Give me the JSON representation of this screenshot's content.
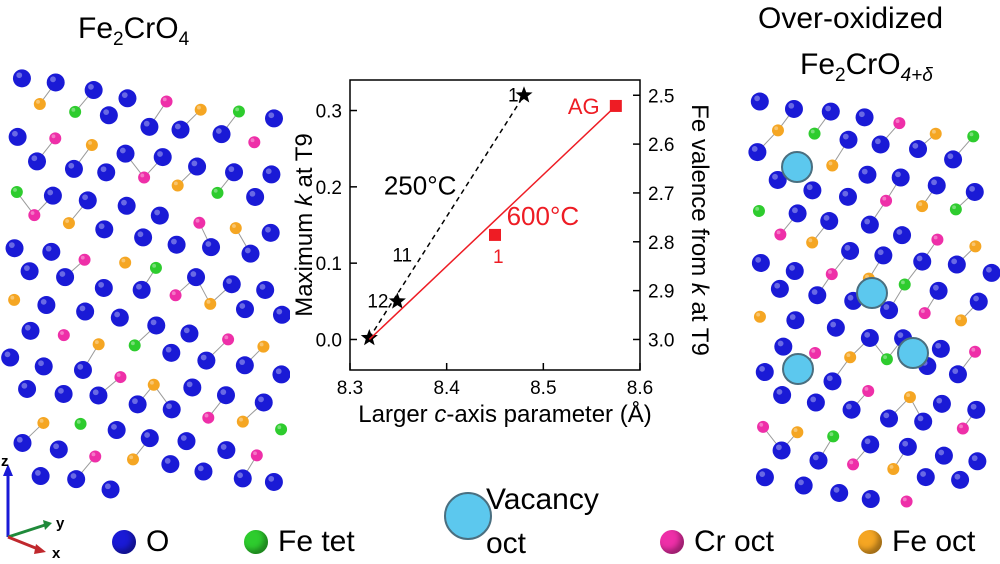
{
  "left_title": {
    "main": "Fe",
    "sub1": "2",
    "mid": "CrO",
    "sub2": "4"
  },
  "right_title": {
    "line1": "Over-oxidized",
    "main": "Fe",
    "sub1": "2",
    "mid": "CrO",
    "sub2": "4+δ"
  },
  "axes_indicator": {
    "z": "z",
    "y": "y",
    "x": "x"
  },
  "colors": {
    "O": "#1a1ad6",
    "fe_tet": "#2ecc2e",
    "cr_oct": "#ee2fa8",
    "fe_oct": "#f5a623",
    "vacancy": "#5cc8ee",
    "red": "#ee1c24"
  },
  "legend": {
    "o": "O",
    "fe_tet": "Fe tet",
    "vacancy_line1": "Vacancy",
    "vacancy_line2": "oct",
    "cr_oct": "Cr oct",
    "fe_oct": "Fe oct"
  },
  "chart_data": {
    "type": "line",
    "xlabel": "Larger c-axis parameter (Å)",
    "xlabel_pre": "Larger ",
    "xlabel_italic": "c",
    "xlabel_post": "-axis parameter (Å)",
    "ylabel": "Maximum k at T9",
    "ylabel_pre": "Maximum ",
    "ylabel_italic": "k",
    "ylabel_post": " at T9",
    "y2label": "Fe valence from k at T9",
    "y2label_pre": "Fe valence from ",
    "y2label_italic": "k",
    "y2label_post": " at T9",
    "xlim": [
      8.3,
      8.6
    ],
    "ylim": [
      -0.04,
      0.34
    ],
    "xticks": [
      "8.3",
      "8.4",
      "8.5",
      "8.6"
    ],
    "xtick_values": [
      8.3,
      8.4,
      8.5,
      8.6
    ],
    "yticks": [
      "0.0",
      "0.1",
      "0.2",
      "0.3"
    ],
    "ytick_values": [
      0.0,
      0.1,
      0.2,
      0.3
    ],
    "y2ticks": [
      "2.5",
      "2.6",
      "2.7",
      "2.8",
      "2.9",
      "3.0"
    ],
    "y2tick_values": [
      0.32,
      0.256,
      0.192,
      0.128,
      0.064,
      0.0
    ],
    "series": [
      {
        "name": "250°C",
        "marker": "star",
        "line": "dashed",
        "color": "#000000",
        "points": [
          {
            "x": 8.32,
            "y": 0.002,
            "label": ""
          },
          {
            "x": 8.349,
            "y": 0.05,
            "label": "12"
          },
          {
            "x": 8.48,
            "y": 0.32,
            "label": "1"
          }
        ],
        "extra_label": {
          "text": "11",
          "x": 8.35,
          "y": 0.11
        }
      },
      {
        "name": "600°C",
        "marker": "square",
        "line": "solid",
        "color": "#ee1c24",
        "points": [
          {
            "x": 8.45,
            "y": 0.137,
            "label": "1"
          },
          {
            "x": 8.575,
            "y": 0.306,
            "label": "AG"
          }
        ],
        "line_start": {
          "x": 8.32,
          "y": 0.0
        }
      }
    ]
  }
}
